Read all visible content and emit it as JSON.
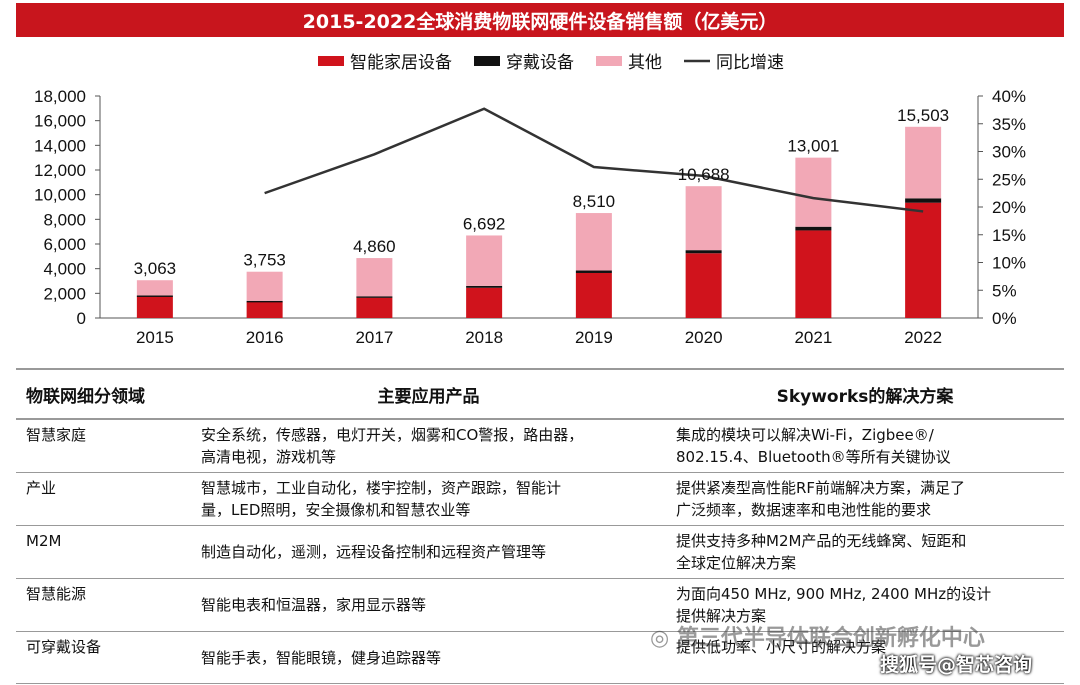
{
  "chart_data": {
    "type": "bar",
    "title": "2015-2022全球消费物联网硬件设备销售额（亿美元）",
    "categories": [
      "2015",
      "2016",
      "2017",
      "2018",
      "2019",
      "2020",
      "2021",
      "2022"
    ],
    "series": [
      {
        "name": "智能家居设备",
        "type": "stacked-bar",
        "color": "#d0131c",
        "values": [
          1750,
          1300,
          1650,
          2450,
          3650,
          5250,
          7100,
          9350
        ]
      },
      {
        "name": "穿戴设备",
        "type": "stacked-bar",
        "color": "#111111",
        "values": [
          80,
          90,
          110,
          150,
          200,
          250,
          300,
          350
        ]
      },
      {
        "name": "其他",
        "type": "stacked-bar",
        "color": "#f2a8b6",
        "values": [
          1233,
          2363,
          3100,
          4092,
          4660,
          5188,
          5601,
          5803
        ]
      },
      {
        "name": "同比增速",
        "type": "line",
        "axis": "right",
        "color": "#333333",
        "values": [
          null,
          22.5,
          29.5,
          37.7,
          27.2,
          25.6,
          21.6,
          19.2
        ]
      }
    ],
    "totals": [
      3063,
      3753,
      4860,
      6692,
      8510,
      10688,
      13001,
      15503
    ],
    "total_labels": [
      "3,063",
      "3,753",
      "4,860",
      "6,692",
      "8,510",
      "10,688",
      "13,001",
      "15,503"
    ],
    "ylim": [
      0,
      18000
    ],
    "y_ticks": [
      "0",
      "2,000",
      "4,000",
      "6,000",
      "8,000",
      "10,000",
      "12,000",
      "14,000",
      "16,000",
      "18,000"
    ],
    "y2lim": [
      0,
      40
    ],
    "y2_ticks": [
      "0%",
      "5%",
      "10%",
      "15%",
      "20%",
      "25%",
      "30%",
      "35%",
      "40%"
    ],
    "legend_position": "top"
  },
  "table": {
    "headers": [
      "物联网细分领域",
      "主要应用产品",
      "Skyworks的解决方案"
    ],
    "rows": [
      {
        "field": "智慧家庭",
        "products": [
          "安全系统，传感器，电灯开关，烟雾和CO警报，路由器，",
          "高清电视，游戏机等"
        ],
        "solution": [
          "集成的模块可以解决Wi-Fi，Zigbee®/",
          "802.15.4、Bluetooth®等所有关键协议"
        ]
      },
      {
        "field": "产业",
        "products": [
          "智慧城市，工业自动化，楼宇控制，资产跟踪，智能计",
          "量，LED照明，安全摄像机和智慧农业等"
        ],
        "solution": [
          "提供紧凑型高性能RF前端解决方案，满足了",
          "广泛频率，数据速率和电池性能的要求"
        ]
      },
      {
        "field": "M2M",
        "products": [
          "制造自动化，遥测，远程设备控制和远程资产管理等"
        ],
        "solution": [
          "提供支持多种M2M产品的无线蜂窝、短距和",
          "全球定位解决方案"
        ]
      },
      {
        "field": "智慧能源",
        "products": [
          "智能电表和恒温器，家用显示器等"
        ],
        "solution": [
          "为面向450 MHz, 900 MHz, 2400 MHz的设计",
          "提供解决方案"
        ]
      },
      {
        "field": "可穿戴设备",
        "products": [
          "智能手表，智能眼镜，健身追踪器等"
        ],
        "solution": [
          "提供低功率、小尺寸的解决方案"
        ]
      }
    ]
  },
  "watermarks": {
    "wechat": "◎ 第三代半导体联合创新孵化中心",
    "sohu": "搜狐号@智芯咨询"
  }
}
